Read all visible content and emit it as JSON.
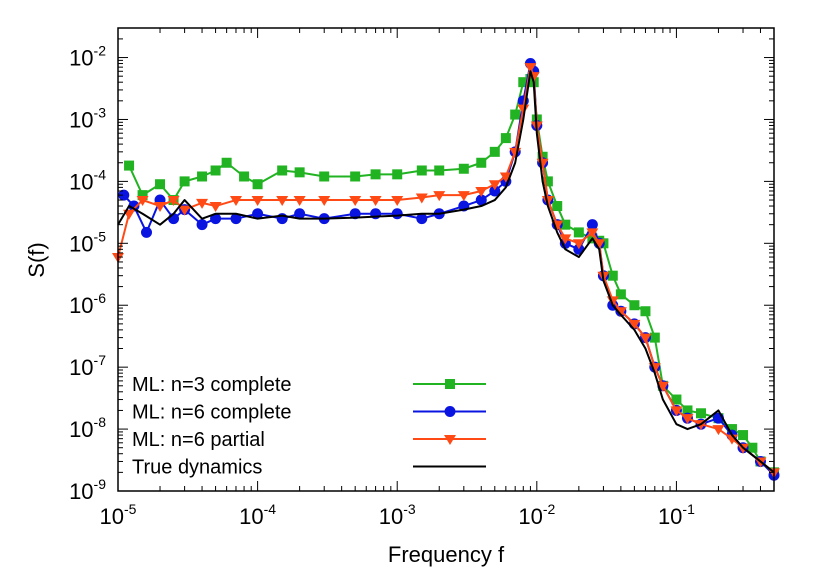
{
  "chart_data": {
    "type": "line",
    "title": "",
    "xlabel": "Frequency f",
    "ylabel": "S(f)",
    "xscale": "log",
    "yscale": "log",
    "xlim": [
      1e-05,
      0.5
    ],
    "ylim": [
      1e-09,
      0.03
    ],
    "grid": false,
    "legend_position": "bottom-left",
    "x_ticks": [
      {
        "value": 1e-05,
        "base": "10",
        "exp": "-5"
      },
      {
        "value": 0.0001,
        "base": "10",
        "exp": "-4"
      },
      {
        "value": 0.001,
        "base": "10",
        "exp": "-3"
      },
      {
        "value": 0.01,
        "base": "10",
        "exp": "-2"
      },
      {
        "value": 0.1,
        "base": "10",
        "exp": "-1"
      }
    ],
    "y_ticks": [
      {
        "value": 1e-09,
        "base": "10",
        "exp": "-9"
      },
      {
        "value": 1e-08,
        "base": "10",
        "exp": "-8"
      },
      {
        "value": 1e-07,
        "base": "10",
        "exp": "-7"
      },
      {
        "value": 1e-06,
        "base": "10",
        "exp": "-6"
      },
      {
        "value": 1e-05,
        "base": "10",
        "exp": "-5"
      },
      {
        "value": 0.0001,
        "base": "10",
        "exp": "-4"
      },
      {
        "value": 0.001,
        "base": "10",
        "exp": "-3"
      },
      {
        "value": 0.01,
        "base": "10",
        "exp": "-2"
      }
    ],
    "series": [
      {
        "name": "ML: n=3 complete",
        "color": "#22b322",
        "marker": "square",
        "x": [
          1.2e-05,
          1.5e-05,
          2e-05,
          2.5e-05,
          3e-05,
          4e-05,
          5e-05,
          6e-05,
          8e-05,
          0.0001,
          0.00015,
          0.0002,
          0.0003,
          0.0005,
          0.0007,
          0.001,
          0.0015,
          0.002,
          0.003,
          0.004,
          0.005,
          0.006,
          0.007,
          0.008,
          0.009,
          0.0095,
          0.01,
          0.011,
          0.012,
          0.014,
          0.016,
          0.02,
          0.025,
          0.028,
          0.03,
          0.035,
          0.04,
          0.05,
          0.06,
          0.07,
          0.08,
          0.1,
          0.12,
          0.15,
          0.2,
          0.25,
          0.3,
          0.35,
          0.4,
          0.5
        ],
        "y": [
          0.00018,
          6e-05,
          9e-05,
          5e-05,
          0.0001,
          0.00012,
          0.00015,
          0.0002,
          0.00012,
          9e-05,
          0.00015,
          0.00014,
          0.00012,
          0.00012,
          0.00013,
          0.00013,
          0.00015,
          0.00015,
          0.00016,
          0.0002,
          0.0003,
          0.0005,
          0.0012,
          0.004,
          0.0045,
          0.004,
          0.001,
          0.00025,
          0.0001,
          4e-05,
          2e-05,
          1.5e-05,
          1.2e-05,
          1.1e-05,
          1e-05,
          3e-06,
          1.5e-06,
          1e-06,
          8e-07,
          3e-07,
          5e-08,
          3e-08,
          2e-08,
          1.8e-08,
          1.5e-08,
          1e-08,
          8e-09,
          5e-09,
          3e-09,
          2e-09
        ]
      },
      {
        "name": "ML: n=6 complete",
        "color": "#0a14e0",
        "marker": "circle",
        "x": [
          1.1e-05,
          1.3e-05,
          1.6e-05,
          2e-05,
          2.5e-05,
          3e-05,
          4e-05,
          5e-05,
          7e-05,
          0.0001,
          0.00015,
          0.0002,
          0.0003,
          0.0005,
          0.0007,
          0.001,
          0.0015,
          0.002,
          0.003,
          0.004,
          0.005,
          0.006,
          0.007,
          0.008,
          0.009,
          0.0095,
          0.01,
          0.011,
          0.012,
          0.014,
          0.016,
          0.02,
          0.025,
          0.028,
          0.03,
          0.035,
          0.04,
          0.05,
          0.06,
          0.07,
          0.08,
          0.1,
          0.12,
          0.15,
          0.2,
          0.25,
          0.3,
          0.4,
          0.5
        ],
        "y": [
          6e-05,
          4e-05,
          1.5e-05,
          5e-05,
          2.5e-05,
          3.5e-05,
          2e-05,
          2.5e-05,
          2.5e-05,
          3e-05,
          2.5e-05,
          3e-05,
          2.5e-05,
          3e-05,
          3e-05,
          3e-05,
          2.5e-05,
          3e-05,
          4e-05,
          5e-05,
          7e-05,
          0.0001,
          0.0003,
          0.002,
          0.008,
          0.006,
          0.0008,
          0.0002,
          5e-05,
          2e-05,
          1e-05,
          8e-06,
          2e-05,
          1e-05,
          3e-06,
          1e-06,
          8e-07,
          5e-07,
          3e-07,
          1e-07,
          5e-08,
          2e-08,
          1.5e-08,
          1.2e-08,
          1.5e-08,
          8e-09,
          5e-09,
          3e-09,
          1.8e-09
        ]
      },
      {
        "name": "ML: n=6 partial",
        "color": "#ff4a16",
        "marker": "triangle-down",
        "x": [
          1e-05,
          1.2e-05,
          1.5e-05,
          2e-05,
          2.5e-05,
          3e-05,
          4e-05,
          5e-05,
          7e-05,
          0.0001,
          0.00015,
          0.0002,
          0.0003,
          0.0005,
          0.0007,
          0.001,
          0.0015,
          0.002,
          0.003,
          0.004,
          0.005,
          0.006,
          0.007,
          0.008,
          0.009,
          0.0095,
          0.01,
          0.011,
          0.012,
          0.014,
          0.016,
          0.02,
          0.025,
          0.028,
          0.03,
          0.035,
          0.04,
          0.05,
          0.06,
          0.07,
          0.08,
          0.1,
          0.12,
          0.15,
          0.2,
          0.25,
          0.3,
          0.4,
          0.5
        ],
        "y": [
          6e-06,
          3e-05,
          5e-05,
          4e-05,
          5e-05,
          3.5e-05,
          4.5e-05,
          4e-05,
          5e-05,
          5e-05,
          5e-05,
          5e-05,
          5e-05,
          5e-05,
          5e-05,
          5e-05,
          5.5e-05,
          6e-05,
          6e-05,
          7e-05,
          9e-05,
          0.00012,
          0.0003,
          0.0015,
          0.007,
          0.005,
          0.0008,
          0.0002,
          5e-05,
          2e-05,
          1.2e-05,
          1e-05,
          1.5e-05,
          1e-05,
          3e-06,
          1.2e-06,
          8e-07,
          5e-07,
          3e-07,
          1e-07,
          5e-08,
          2e-08,
          1.5e-08,
          1.2e-08,
          1e-08,
          7e-09,
          5e-09,
          3e-09,
          2e-09
        ]
      },
      {
        "name": "True dynamics",
        "color": "#000000",
        "marker": "none",
        "x": [
          1e-05,
          1.2e-05,
          1.5e-05,
          2e-05,
          2.5e-05,
          3e-05,
          4e-05,
          5e-05,
          7e-05,
          0.0001,
          0.00015,
          0.0002,
          0.0003,
          0.0005,
          0.0007,
          0.001,
          0.0015,
          0.002,
          0.003,
          0.004,
          0.005,
          0.006,
          0.007,
          0.008,
          0.009,
          0.0095,
          0.01,
          0.011,
          0.012,
          0.014,
          0.016,
          0.02,
          0.025,
          0.028,
          0.03,
          0.035,
          0.04,
          0.05,
          0.06,
          0.07,
          0.08,
          0.1,
          0.12,
          0.15,
          0.2,
          0.25,
          0.3,
          0.4,
          0.5
        ],
        "y": [
          2e-05,
          4e-05,
          3e-05,
          2e-05,
          3e-05,
          5e-05,
          2.5e-05,
          3e-05,
          3e-05,
          2.5e-05,
          2.8e-05,
          2.5e-05,
          2.5e-05,
          2.6e-05,
          2.7e-05,
          2.8e-05,
          3e-05,
          3e-05,
          3.5e-05,
          4e-05,
          5e-05,
          8e-05,
          0.0002,
          0.001,
          0.006,
          0.004,
          0.0006,
          0.0001,
          4e-05,
          1.5e-05,
          8e-06,
          6e-06,
          1.2e-05,
          8e-06,
          2.5e-06,
          1e-06,
          7e-07,
          4e-07,
          2e-07,
          8e-08,
          3e-08,
          1.2e-08,
          1e-08,
          1.2e-08,
          2e-08,
          8e-09,
          5e-09,
          3e-09,
          2e-09
        ]
      }
    ]
  }
}
